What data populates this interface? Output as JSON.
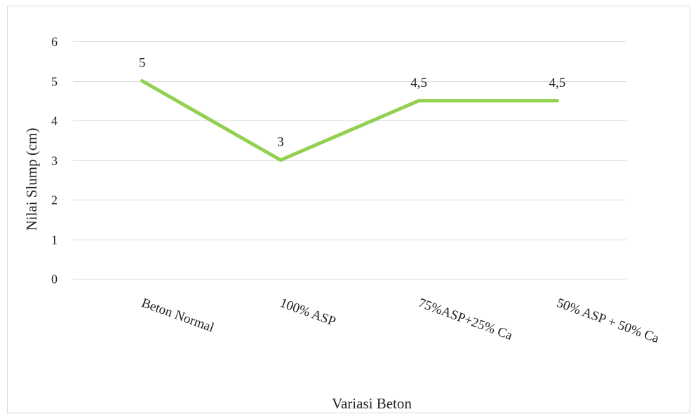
{
  "chart_data": {
    "type": "line",
    "categories": [
      "Beton Normal",
      "100% ASP",
      "75%ASP+25% Ca",
      "50% ASP + 50% Ca"
    ],
    "series": [
      {
        "values": [
          5,
          3,
          4.5,
          4.5
        ],
        "data_labels": [
          "5",
          "3",
          "4,5",
          "4,5"
        ],
        "color": "#92d050"
      }
    ],
    "xlabel": "Variasi Beton",
    "ylabel": "Nilai Slump (cm)",
    "ylim": [
      0,
      6
    ],
    "yticks": [
      "0",
      "1",
      "2",
      "3",
      "4",
      "5",
      "6"
    ],
    "grid": true,
    "legend": "none"
  }
}
